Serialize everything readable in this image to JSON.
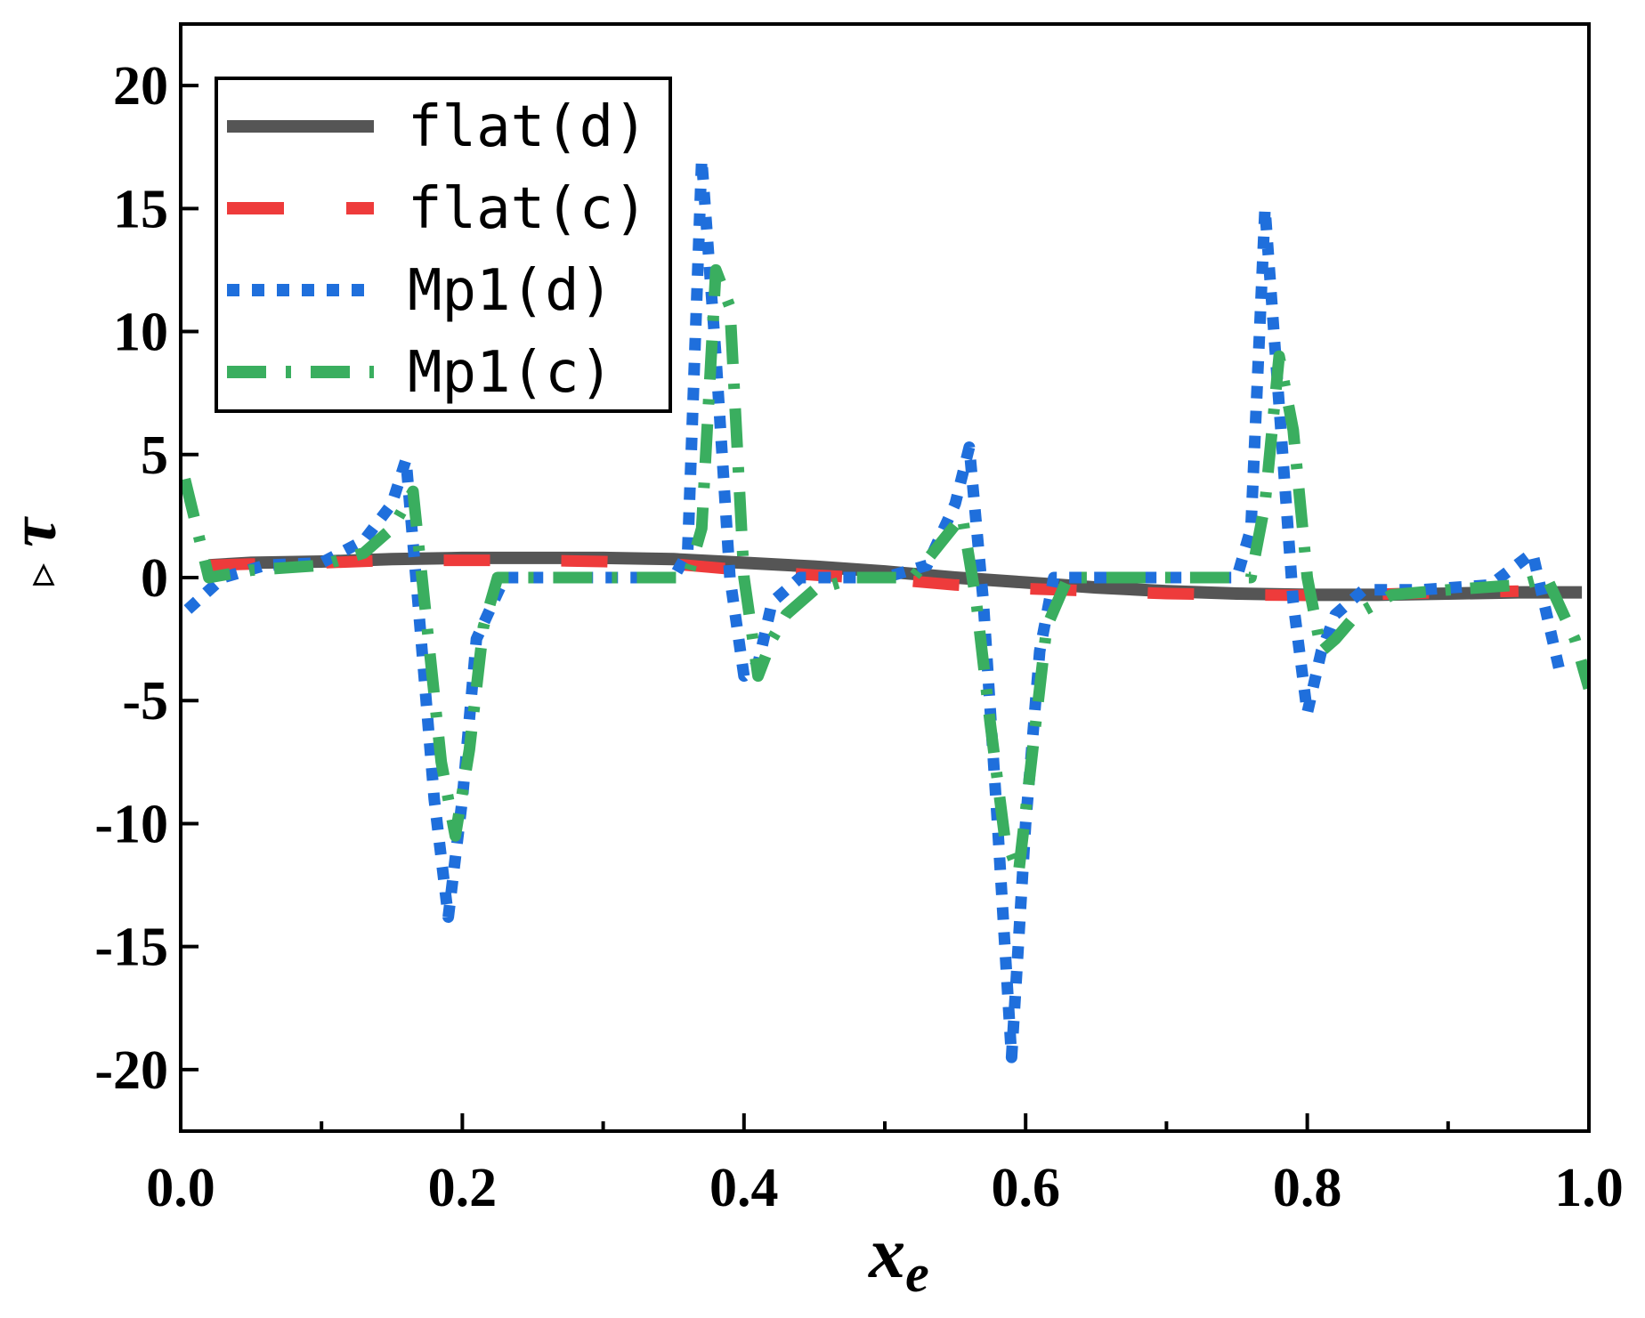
{
  "chart_data": {
    "type": "line",
    "title": "",
    "xlabel": "x",
    "xlabel_sub": "e",
    "ylabel": "τ",
    "ylabel_prefix": "▹",
    "xlim": [
      0.0,
      1.0
    ],
    "ylim": [
      -22.5,
      22.5
    ],
    "xticks": [
      0.0,
      0.2,
      0.4,
      0.6,
      0.8,
      1.0
    ],
    "xtick_labels": [
      "0.0",
      "0.2",
      "0.4",
      "0.6",
      "0.8",
      "1.0"
    ],
    "xminor": [
      0.1,
      0.3,
      0.5,
      0.7,
      0.9
    ],
    "yticks": [
      20,
      15,
      10,
      5,
      0,
      -5,
      -10,
      -15,
      -20
    ],
    "ytick_labels": [
      "20",
      "15",
      "10",
      "5",
      "0",
      "-5",
      "-10",
      "-15",
      "-20"
    ],
    "legend_position": "top-left",
    "series": [
      {
        "name": "flat(d)",
        "color": "#555555",
        "style": "solid",
        "x": [
          0.02,
          0.05,
          0.1,
          0.15,
          0.2,
          0.25,
          0.3,
          0.35,
          0.4,
          0.45,
          0.5,
          0.55,
          0.6,
          0.65,
          0.7,
          0.75,
          0.8,
          0.85,
          0.9,
          0.95,
          0.995
        ],
        "y": [
          0.5,
          0.6,
          0.65,
          0.75,
          0.8,
          0.8,
          0.8,
          0.75,
          0.6,
          0.45,
          0.25,
          0.0,
          -0.2,
          -0.4,
          -0.55,
          -0.65,
          -0.7,
          -0.7,
          -0.65,
          -0.6,
          -0.6
        ]
      },
      {
        "name": "flat(c)",
        "color": "#ee3b3b",
        "style": "dash",
        "x": [
          0.02,
          0.05,
          0.1,
          0.15,
          0.2,
          0.25,
          0.3,
          0.35,
          0.4,
          0.45,
          0.5,
          0.55,
          0.6,
          0.65,
          0.7,
          0.75,
          0.8,
          0.85,
          0.9,
          0.95
        ],
        "y": [
          0.5,
          0.55,
          0.6,
          0.7,
          0.7,
          0.7,
          0.65,
          0.55,
          0.3,
          0.1,
          -0.05,
          -0.3,
          -0.45,
          -0.55,
          -0.65,
          -0.7,
          -0.72,
          -0.68,
          -0.6,
          -0.55
        ]
      },
      {
        "name": "Mp1(d)",
        "color": "#1f6fdc",
        "style": "dot",
        "x": [
          0.005,
          0.03,
          0.06,
          0.1,
          0.13,
          0.15,
          0.16,
          0.17,
          0.18,
          0.19,
          0.2,
          0.21,
          0.23,
          0.3,
          0.35,
          0.36,
          0.37,
          0.38,
          0.39,
          0.4,
          0.41,
          0.42,
          0.44,
          0.47,
          0.5,
          0.53,
          0.55,
          0.56,
          0.57,
          0.58,
          0.59,
          0.6,
          0.61,
          0.62,
          0.65,
          0.7,
          0.75,
          0.76,
          0.77,
          0.78,
          0.79,
          0.8,
          0.81,
          0.82,
          0.84,
          0.88,
          0.93,
          0.96,
          0.98
        ],
        "y": [
          -1.3,
          0.0,
          0.5,
          0.6,
          1.5,
          3.0,
          4.8,
          -2.0,
          -9.0,
          -13.8,
          -9.0,
          -2.5,
          0.0,
          0.0,
          0.0,
          1.0,
          17.0,
          9.0,
          0.0,
          -4.0,
          -3.5,
          -1.0,
          0.0,
          0.0,
          0.0,
          0.5,
          3.0,
          5.3,
          -1.0,
          -10.0,
          -19.5,
          -10.0,
          -3.0,
          0.0,
          0.0,
          0.0,
          0.0,
          2.0,
          15.0,
          7.0,
          -1.0,
          -5.5,
          -3.0,
          -1.5,
          -0.5,
          -0.5,
          -0.3,
          1.0,
          -4.0
        ]
      },
      {
        "name": "Mp1(c)",
        "color": "#3aae5f",
        "style": "dashdot",
        "x": [
          0.003,
          0.02,
          0.05,
          0.1,
          0.13,
          0.15,
          0.165,
          0.175,
          0.185,
          0.195,
          0.205,
          0.215,
          0.225,
          0.3,
          0.36,
          0.37,
          0.38,
          0.39,
          0.4,
          0.41,
          0.42,
          0.43,
          0.45,
          0.48,
          0.52,
          0.555,
          0.565,
          0.575,
          0.585,
          0.595,
          0.605,
          0.615,
          0.63,
          0.7,
          0.76,
          0.77,
          0.78,
          0.79,
          0.8,
          0.81,
          0.82,
          0.835,
          0.86,
          0.9,
          0.95,
          0.97,
          0.99,
          1.0
        ],
        "y": [
          4.0,
          0.0,
          0.3,
          0.5,
          1.0,
          2.0,
          3.5,
          -2.0,
          -7.5,
          -10.5,
          -7.0,
          -2.0,
          0.0,
          0.0,
          0.0,
          2.0,
          12.5,
          11.0,
          0.0,
          -4.0,
          -2.5,
          -1.5,
          -0.5,
          0.0,
          0.0,
          2.5,
          -1.0,
          -6.0,
          -10.5,
          -12.0,
          -7.0,
          -2.0,
          0.0,
          0.0,
          0.0,
          3.0,
          9.0,
          6.0,
          0.0,
          -3.0,
          -2.5,
          -1.5,
          -0.7,
          -0.5,
          -0.3,
          0.0,
          -2.5,
          -4.5
        ]
      }
    ]
  }
}
